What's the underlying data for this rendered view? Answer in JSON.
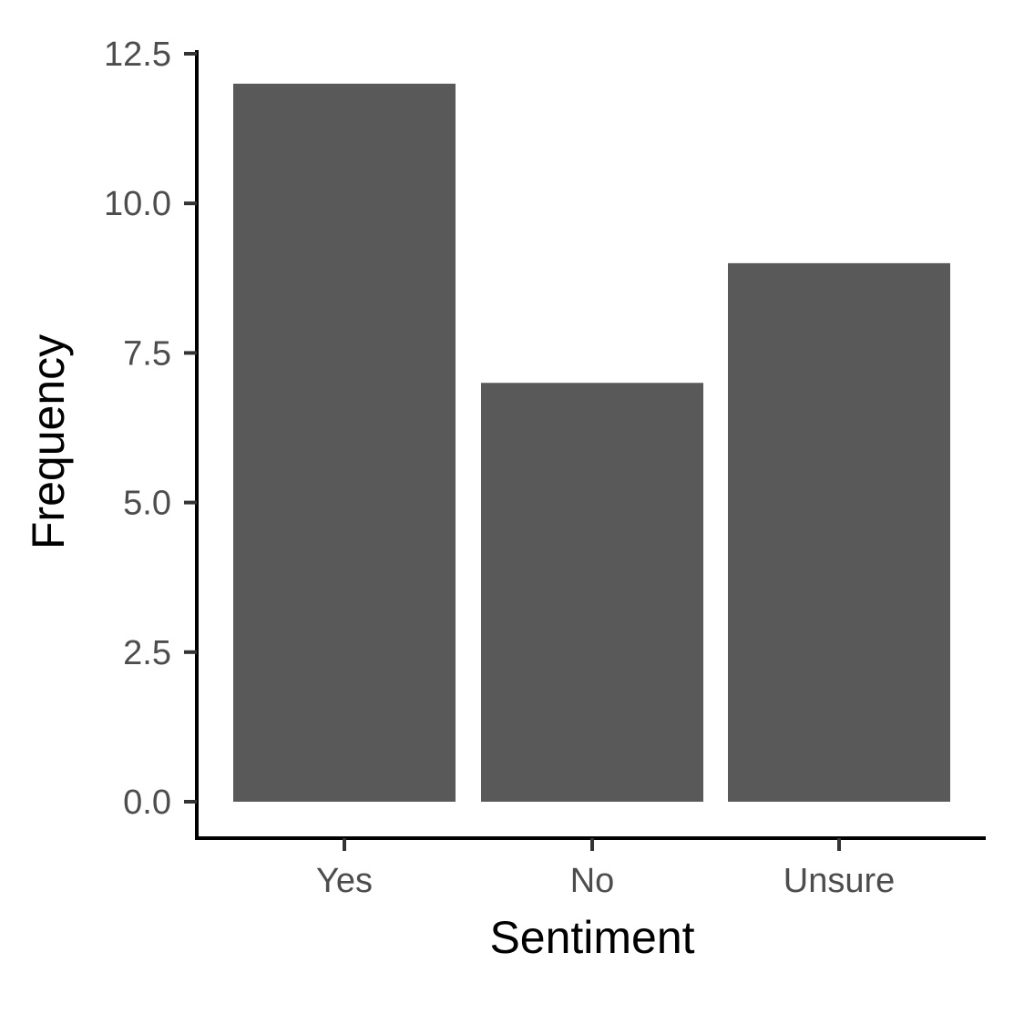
{
  "chart_data": {
    "type": "bar",
    "title": "",
    "xlabel": "Sentiment",
    "ylabel": "Frequency",
    "categories": [
      "Yes",
      "No",
      "Unsure"
    ],
    "values": [
      12,
      7,
      9
    ],
    "ylim": [
      0,
      12.5
    ],
    "yticks": [
      0,
      2.5,
      5,
      7.5,
      10,
      12.5
    ],
    "ytick_labels": [
      "0.0",
      "2.5",
      "5.0",
      "7.5",
      "10.0",
      "12.5"
    ],
    "grid": false,
    "legend": "none",
    "colors": {
      "bar": "#595959",
      "axis": "#000000",
      "tick_label": "#4d4d4d"
    }
  }
}
